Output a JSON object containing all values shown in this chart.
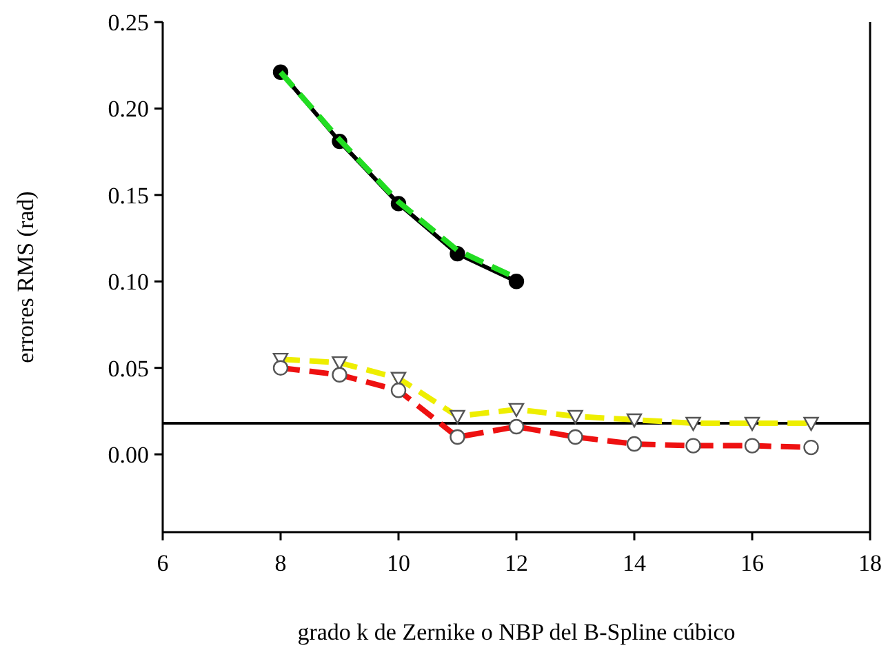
{
  "chart_data": {
    "type": "line",
    "xlabel": "grado k de Zernike o NBP del B-Spline cúbico",
    "ylabel": "errores RMS (rad)",
    "xlim": [
      6,
      18
    ],
    "xticks": [
      6,
      8,
      10,
      12,
      14,
      16,
      18
    ],
    "ylim": [
      -0.045,
      0.25
    ],
    "yticks": [
      {
        "value": 0,
        "label": "0.00"
      },
      {
        "value": 0.05,
        "label": "0.05"
      },
      {
        "value": 0.1,
        "label": "0.10"
      },
      {
        "value": 0.15,
        "label": "0.15"
      },
      {
        "value": 0.2,
        "label": "0.20"
      },
      {
        "value": 0.25,
        "label": "0.25"
      }
    ],
    "grid": false,
    "ref_lines": [
      {
        "axis": "y",
        "value": 0.018,
        "color": "#000000"
      }
    ],
    "series": [
      {
        "color": "#000000",
        "x": [
          8,
          9,
          10,
          11,
          12
        ],
        "values": [
          0.221,
          0.181,
          0.145,
          0.116,
          0.1
        ],
        "marker": "circle",
        "line_style": "solid"
      },
      {
        "color": "#22dd22",
        "x": [
          8,
          9,
          10,
          11,
          12
        ],
        "values": [
          0.221,
          0.182,
          0.146,
          0.118,
          0.102
        ],
        "marker": "none",
        "line_style": "dashed"
      },
      {
        "color": "#eeee00",
        "x": [
          8,
          9,
          10,
          11,
          12,
          13,
          14,
          15,
          16,
          17
        ],
        "values": [
          0.055,
          0.053,
          0.044,
          0.022,
          0.026,
          0.022,
          0.02,
          0.018,
          0.018,
          0.018
        ],
        "marker": "triangle",
        "line_style": "dashed"
      },
      {
        "color": "#ee1111",
        "x": [
          8,
          9,
          10,
          11,
          12,
          13,
          14,
          15,
          16,
          17
        ],
        "values": [
          0.05,
          0.046,
          0.037,
          0.01,
          0.016,
          0.01,
          0.006,
          0.005,
          0.005,
          0.004
        ],
        "marker": "circle",
        "line_style": "dashed"
      }
    ]
  }
}
